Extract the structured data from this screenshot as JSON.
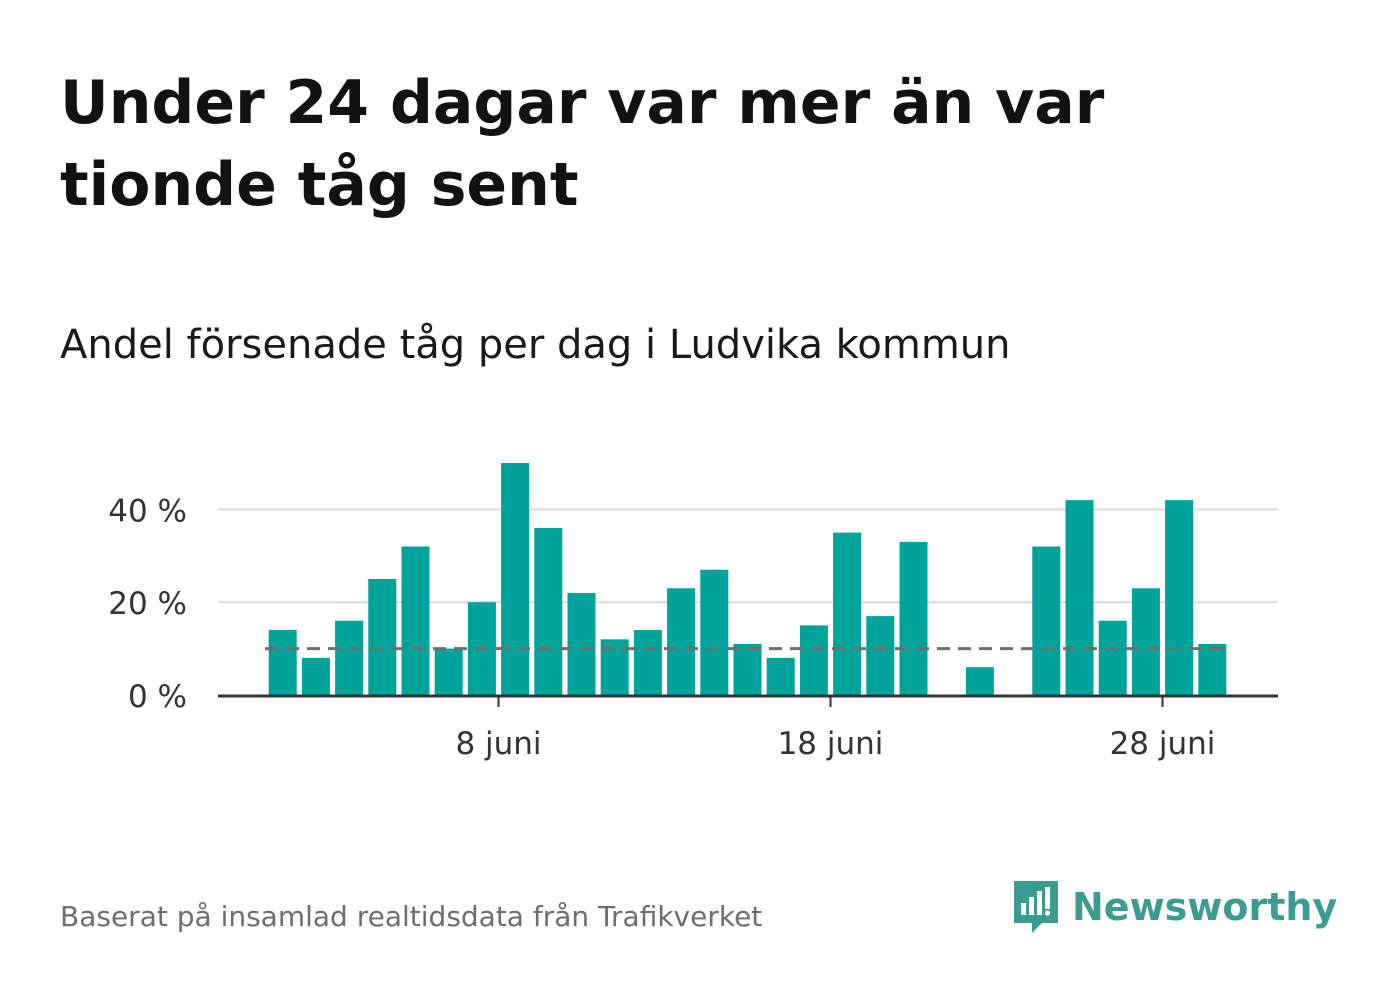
{
  "title": "Under 24 dagar var mer än var tionde tåg sent",
  "subtitle": "Andel försenade tåg per dag i Ludvika kommun",
  "source": "Baserat på insamlad realtidsdata från Trafikverket",
  "brand": {
    "name": "Newsworthy",
    "icon": "newsworthy-logo-icon"
  },
  "colors": {
    "bar": "#00a39a",
    "reference": "#6e6e6e",
    "grid": "#e0e0e0",
    "axis": "#333333",
    "brand": "#3d9c91"
  },
  "chart_data": {
    "type": "bar",
    "x": [
      1,
      2,
      3,
      4,
      5,
      6,
      7,
      8,
      9,
      10,
      11,
      12,
      13,
      14,
      15,
      16,
      17,
      18,
      19,
      20,
      21,
      22,
      23,
      24,
      25,
      26,
      27,
      28,
      29
    ],
    "values": [
      14,
      8,
      16,
      25,
      32,
      10,
      20,
      50,
      36,
      22,
      12,
      14,
      23,
      27,
      11,
      8,
      15,
      35,
      17,
      33,
      0,
      6,
      0,
      32,
      42,
      16,
      23,
      42,
      11
    ],
    "reference_line": 10,
    "ylim": [
      0,
      52
    ],
    "yticks": [
      0,
      20,
      40
    ],
    "ytick_labels": [
      "0 %",
      "20 %",
      "40 %"
    ],
    "xticks": [
      8,
      18,
      28
    ],
    "xtick_labels": [
      "8 juni",
      "18 juni",
      "28 juni"
    ],
    "grid": true
  }
}
